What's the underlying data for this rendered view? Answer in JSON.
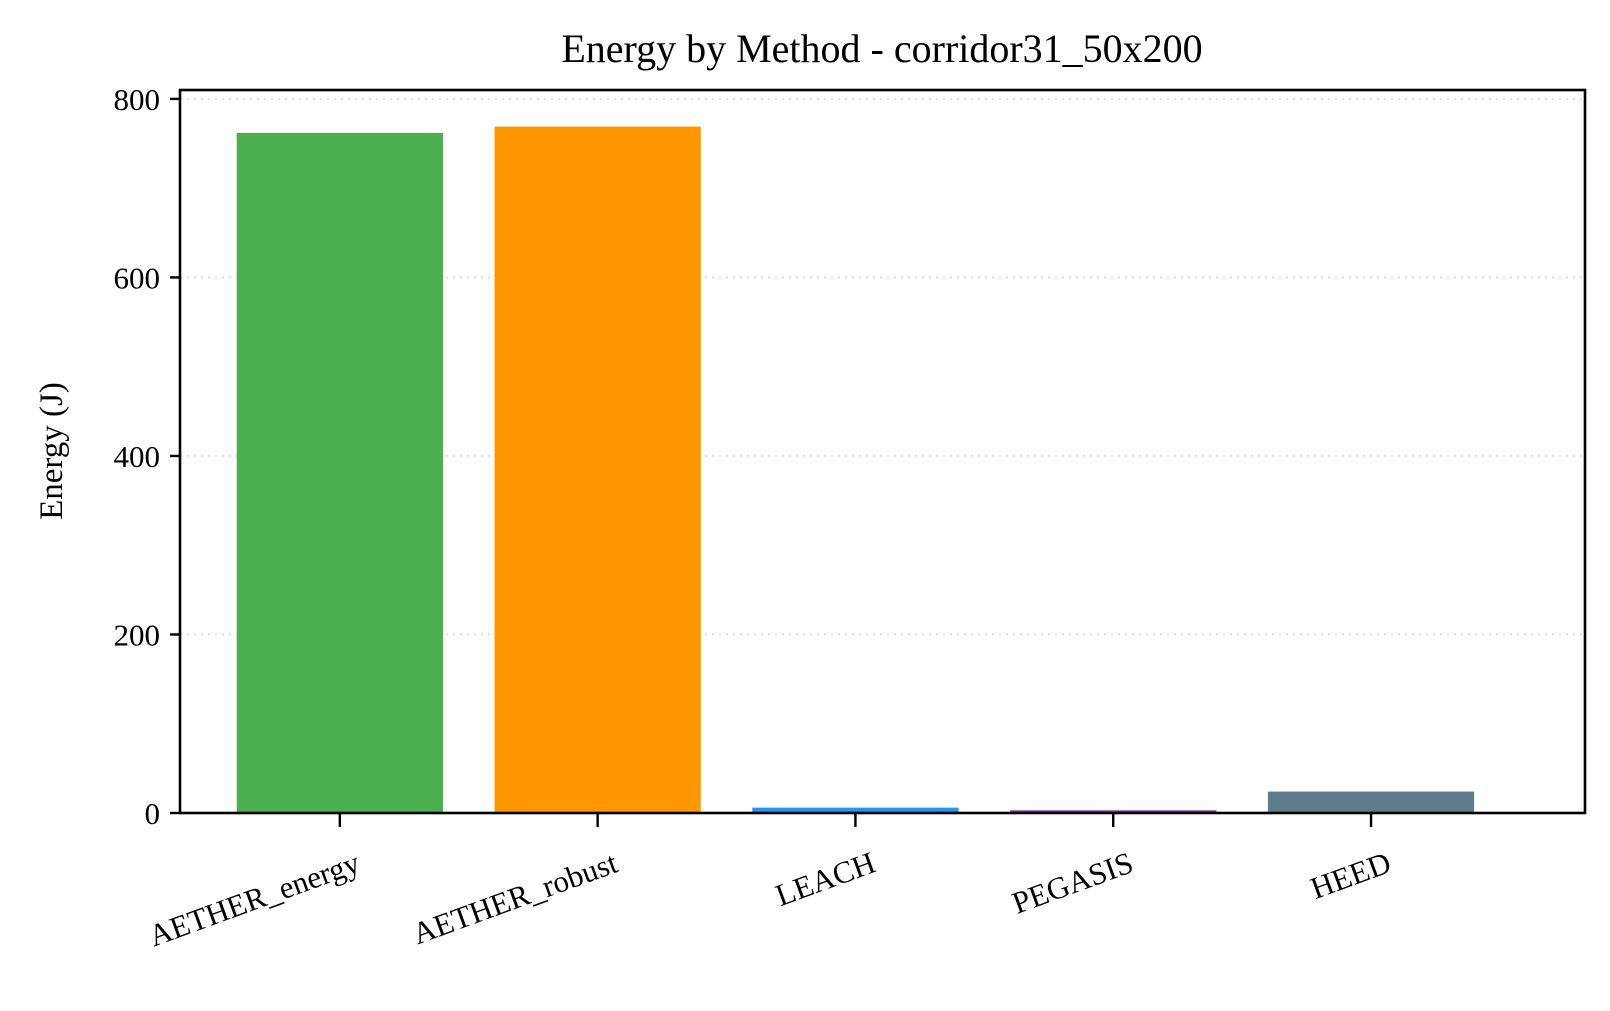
{
  "chart_data": {
    "type": "bar",
    "title": "Energy by Method - corridor31_50x200",
    "xlabel": "",
    "ylabel": "Energy (J)",
    "categories": [
      "AETHER_energy",
      "AETHER_robust",
      "LEACH",
      "PEGASIS",
      "HEED"
    ],
    "values": [
      762,
      769,
      6,
      3,
      24
    ],
    "colors": [
      "#4caf50",
      "#ff9800",
      "#2196f3",
      "#9c27b0",
      "#607d8b"
    ],
    "ylim": [
      0,
      810
    ],
    "yticks": [
      0,
      200,
      400,
      600,
      800
    ],
    "grid": "y-dotted",
    "legend": "none"
  }
}
